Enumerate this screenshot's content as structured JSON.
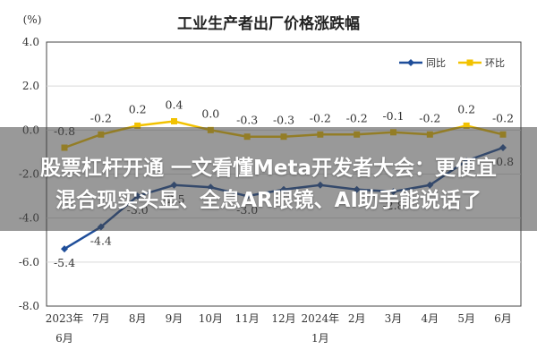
{
  "chart_data": {
    "type": "line",
    "title": "工业生产者出厂价格涨跌幅",
    "ylabel": "(%)",
    "ylim": [
      -8.0,
      4.0
    ],
    "yticks": [
      "4.0",
      "2.0",
      "0.0",
      "-2.0",
      "-4.0",
      "-6.0",
      "-8.0"
    ],
    "categories": [
      "2023年6月",
      "7月",
      "8月",
      "9月",
      "10月",
      "11月",
      "12月",
      "2024年1月",
      "2月",
      "3月",
      "4月",
      "5月",
      "6月"
    ],
    "category_labels": [
      {
        "line1": "2023年",
        "line2": "6月"
      },
      {
        "line1": "7月",
        "line2": ""
      },
      {
        "line1": "8月",
        "line2": ""
      },
      {
        "line1": "9月",
        "line2": ""
      },
      {
        "line1": "10月",
        "line2": ""
      },
      {
        "line1": "11月",
        "line2": ""
      },
      {
        "line1": "12月",
        "line2": ""
      },
      {
        "line1": "2024年",
        "line2": "1月"
      },
      {
        "line1": "2月",
        "line2": ""
      },
      {
        "line1": "3月",
        "line2": ""
      },
      {
        "line1": "4月",
        "line2": ""
      },
      {
        "line1": "5月",
        "line2": ""
      },
      {
        "line1": "6月",
        "line2": ""
      }
    ],
    "series": [
      {
        "name": "同比",
        "color": "#1f4e9a",
        "values": [
          -5.4,
          -4.4,
          -3.0,
          -2.5,
          -2.6,
          -3.0,
          -2.7,
          -2.5,
          -2.7,
          -2.8,
          -2.5,
          -1.4,
          -0.8
        ],
        "labels": [
          "-5.4",
          "-4.4",
          "-3.0",
          "-2.5",
          "",
          "-3.0",
          "",
          "",
          "",
          "-2.8",
          "",
          "",
          "-0.8"
        ]
      },
      {
        "name": "环比",
        "color": "#f2c200",
        "values": [
          -0.8,
          -0.2,
          0.2,
          0.4,
          0.0,
          -0.3,
          -0.3,
          -0.2,
          -0.2,
          -0.1,
          -0.2,
          0.2,
          -0.2
        ],
        "labels": [
          "-0.8",
          "-0.2",
          "0.2",
          "0.4",
          "0.0",
          "-0.3",
          "-0.3",
          "-0.2",
          "-0.2",
          "-0.1",
          "-0.2",
          "0.2",
          "-0.2"
        ]
      }
    ],
    "legend": "top-right",
    "grid": true
  },
  "headline": {
    "line1": "股票杠杆开通 一文看懂Meta开发者大会：更便宜",
    "line2": "混合现实头显、全息AR眼镜、AI助手能说话了"
  },
  "colors": {
    "axis": "#444444",
    "grid": "#d9d9d9",
    "overlay": "#464646"
  }
}
